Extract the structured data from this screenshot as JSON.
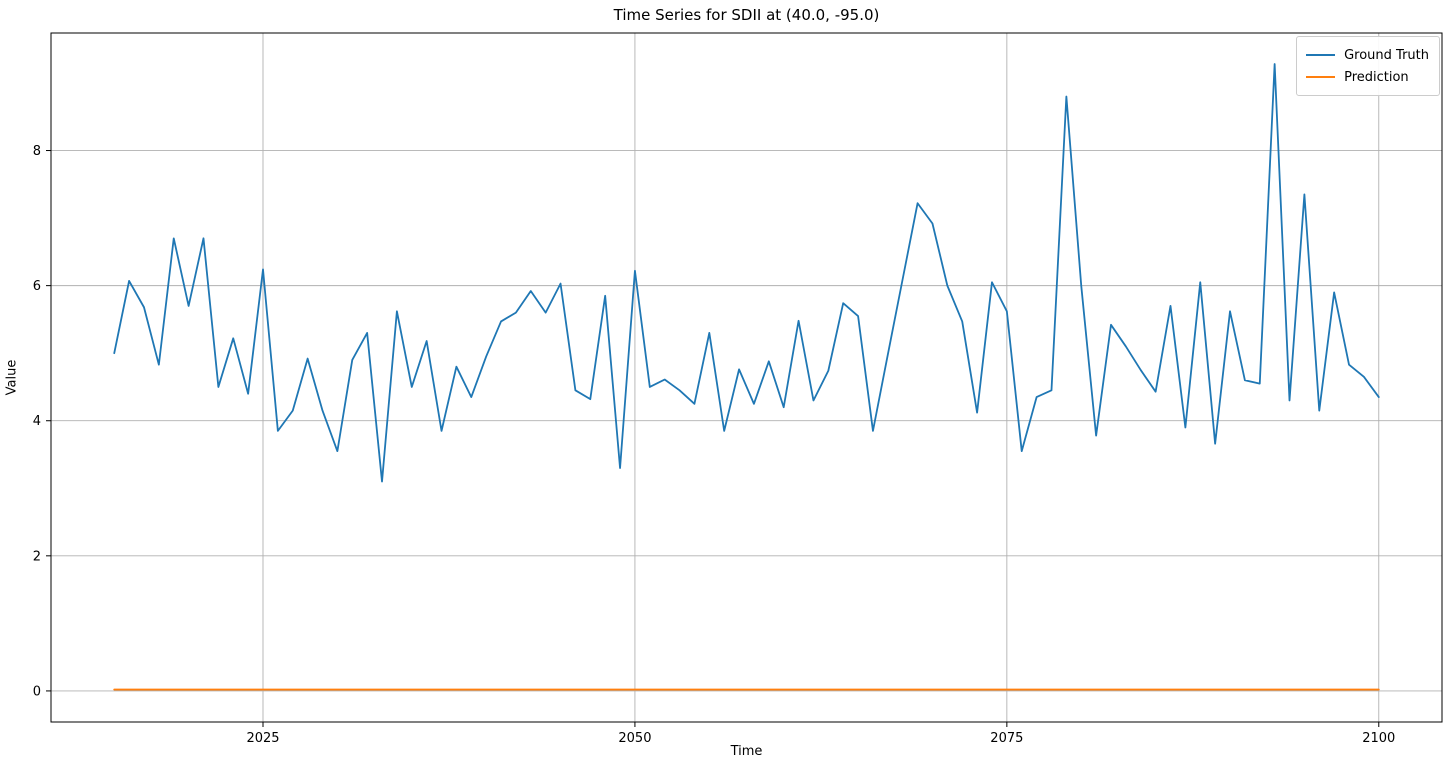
{
  "chart_data": {
    "type": "line",
    "title": "Time Series for SDII at (40.0, -95.0)",
    "xlabel": "Time",
    "ylabel": "Value",
    "xlim": [
      2010.75,
      2104.25
    ],
    "ylim": [
      -0.46,
      9.74
    ],
    "xticks": [
      2025,
      2050,
      2075,
      2100
    ],
    "yticks": [
      0,
      2,
      4,
      6,
      8
    ],
    "grid": true,
    "grid_color": "#b0b0b0",
    "legend_position": "upper right",
    "series": [
      {
        "name": "Ground Truth",
        "color": "#1f77b4",
        "x_start": 2015,
        "x_step": 1,
        "values": [
          5.0,
          6.07,
          5.68,
          4.83,
          6.7,
          5.7,
          6.7,
          4.5,
          5.22,
          4.4,
          6.24,
          3.85,
          4.15,
          4.92,
          4.15,
          3.55,
          4.9,
          5.3,
          3.1,
          5.62,
          4.5,
          5.18,
          3.85,
          4.8,
          4.35,
          4.95,
          5.47,
          5.6,
          5.92,
          5.6,
          6.03,
          4.45,
          4.32,
          5.85,
          3.3,
          6.22,
          4.5,
          4.61,
          4.45,
          4.25,
          5.3,
          3.85,
          4.76,
          4.25,
          4.88,
          4.2,
          5.48,
          4.3,
          4.74,
          5.74,
          5.55,
          3.85,
          4.98,
          6.1,
          7.22,
          6.92,
          6.0,
          5.47,
          4.12,
          6.05,
          5.62,
          3.55,
          4.35,
          4.45,
          8.8,
          6.0,
          3.78,
          5.42,
          5.1,
          4.75,
          4.43,
          5.7,
          3.9,
          6.05,
          3.66,
          5.62,
          4.6,
          4.55,
          9.28,
          4.3,
          7.35,
          4.15,
          5.9,
          4.83,
          4.65,
          4.35
        ]
      },
      {
        "name": "Prediction",
        "color": "#ff7f0e",
        "x": [
          2015,
          2100
        ],
        "values": [
          0.02,
          0.02
        ]
      }
    ]
  }
}
